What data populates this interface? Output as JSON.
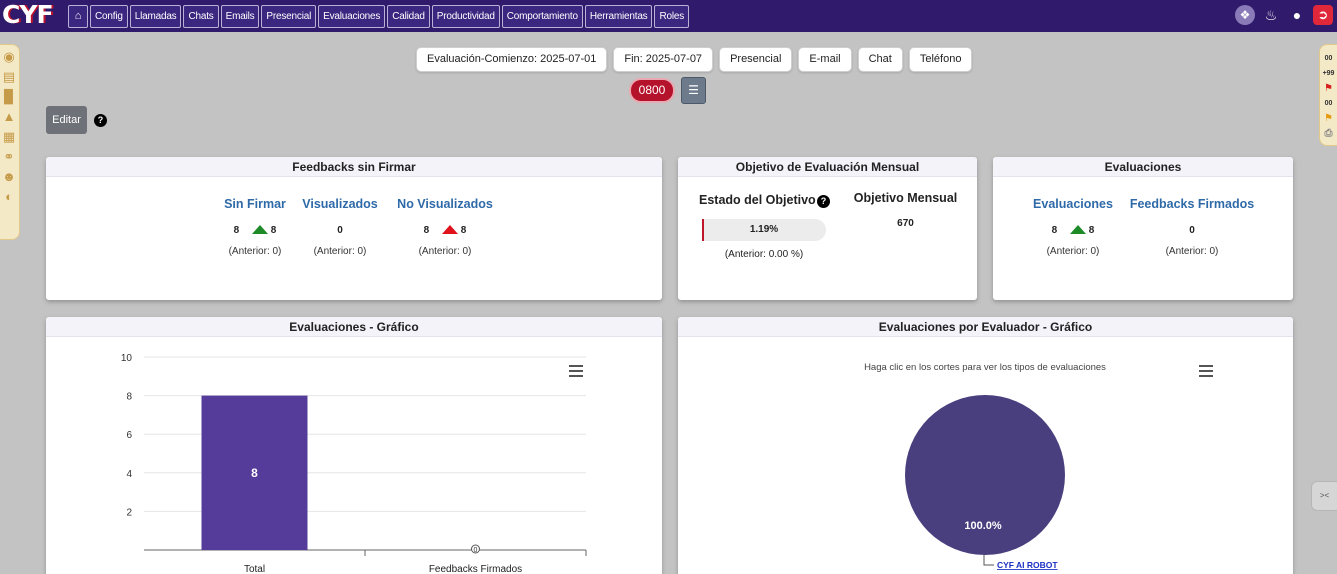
{
  "app": {
    "logo": "CYF"
  },
  "nav": {
    "home_icon": "home-icon",
    "items": [
      "Config",
      "Llamadas",
      "Chats",
      "Emails",
      "Presencial",
      "Evaluaciones",
      "Calidad",
      "Productividad",
      "Comportamiento",
      "Herramientas",
      "Roles"
    ]
  },
  "filters": {
    "start": "Evaluación-Comienzo: 2025-07-01",
    "end": "Fin: 2025-07-07",
    "channels": [
      "Presencial",
      "E-mail",
      "Chat",
      "Teléfono"
    ]
  },
  "btn_0800": "0800",
  "edit_label": "Editar",
  "help_glyph": "?",
  "right_strip": {
    "n1": "00",
    "n2": "+99",
    "n3": "00"
  },
  "cards": {
    "feedbacks": {
      "title": "Feedbacks sin Firmar",
      "metrics": [
        {
          "title": "Sin Firmar",
          "value": "8",
          "delta": "8",
          "trend": "up-green",
          "previous": "(Anterior: 0)"
        },
        {
          "title": "Visualizados",
          "value": "0",
          "previous": "(Anterior: 0)"
        },
        {
          "title": "No Visualizados",
          "value": "8",
          "delta": "8",
          "trend": "up-red",
          "previous": "(Anterior: 0)"
        }
      ]
    },
    "objetivo": {
      "title": "Objetivo de Evaluación Mensual",
      "estado_title": "Estado del Objetivo",
      "progress_label": "1.19%",
      "progress_value": 1.19,
      "previous": "(Anterior: 0.00 %)",
      "mensual_title": "Objetivo Mensual",
      "mensual_value": "670"
    },
    "evaluaciones": {
      "title": "Evaluaciones",
      "metrics": [
        {
          "title": "Evaluaciones",
          "value": "8",
          "delta": "8",
          "trend": "up-green",
          "previous": "(Anterior: 0)"
        },
        {
          "title": "Feedbacks Firmados",
          "value": "0",
          "previous": "(Anterior: 0)"
        }
      ]
    },
    "bar_card": {
      "title": "Evaluaciones - Gráfico"
    },
    "pie_card": {
      "title": "Evaluaciones por Evaluador - Gráfico"
    }
  },
  "chart_data": [
    {
      "type": "bar",
      "title": "",
      "categories": [
        "Total",
        "Feedbacks Firmados"
      ],
      "values": [
        8,
        0
      ],
      "data_labels": [
        "8",
        "0"
      ],
      "ylim": [
        0,
        10
      ],
      "yticks": [
        "2",
        "4",
        "6",
        "8",
        "10"
      ],
      "grid": true,
      "bar_color": "#553c9a"
    },
    {
      "type": "pie",
      "subtitle": "Haga clic en los cortes para ver los tipos de evaluaciones",
      "slices": [
        {
          "label": "CYF AI ROBOT",
          "value": 100.0,
          "data_label": "100.0%",
          "color": "#4a3f7e"
        }
      ]
    }
  ]
}
